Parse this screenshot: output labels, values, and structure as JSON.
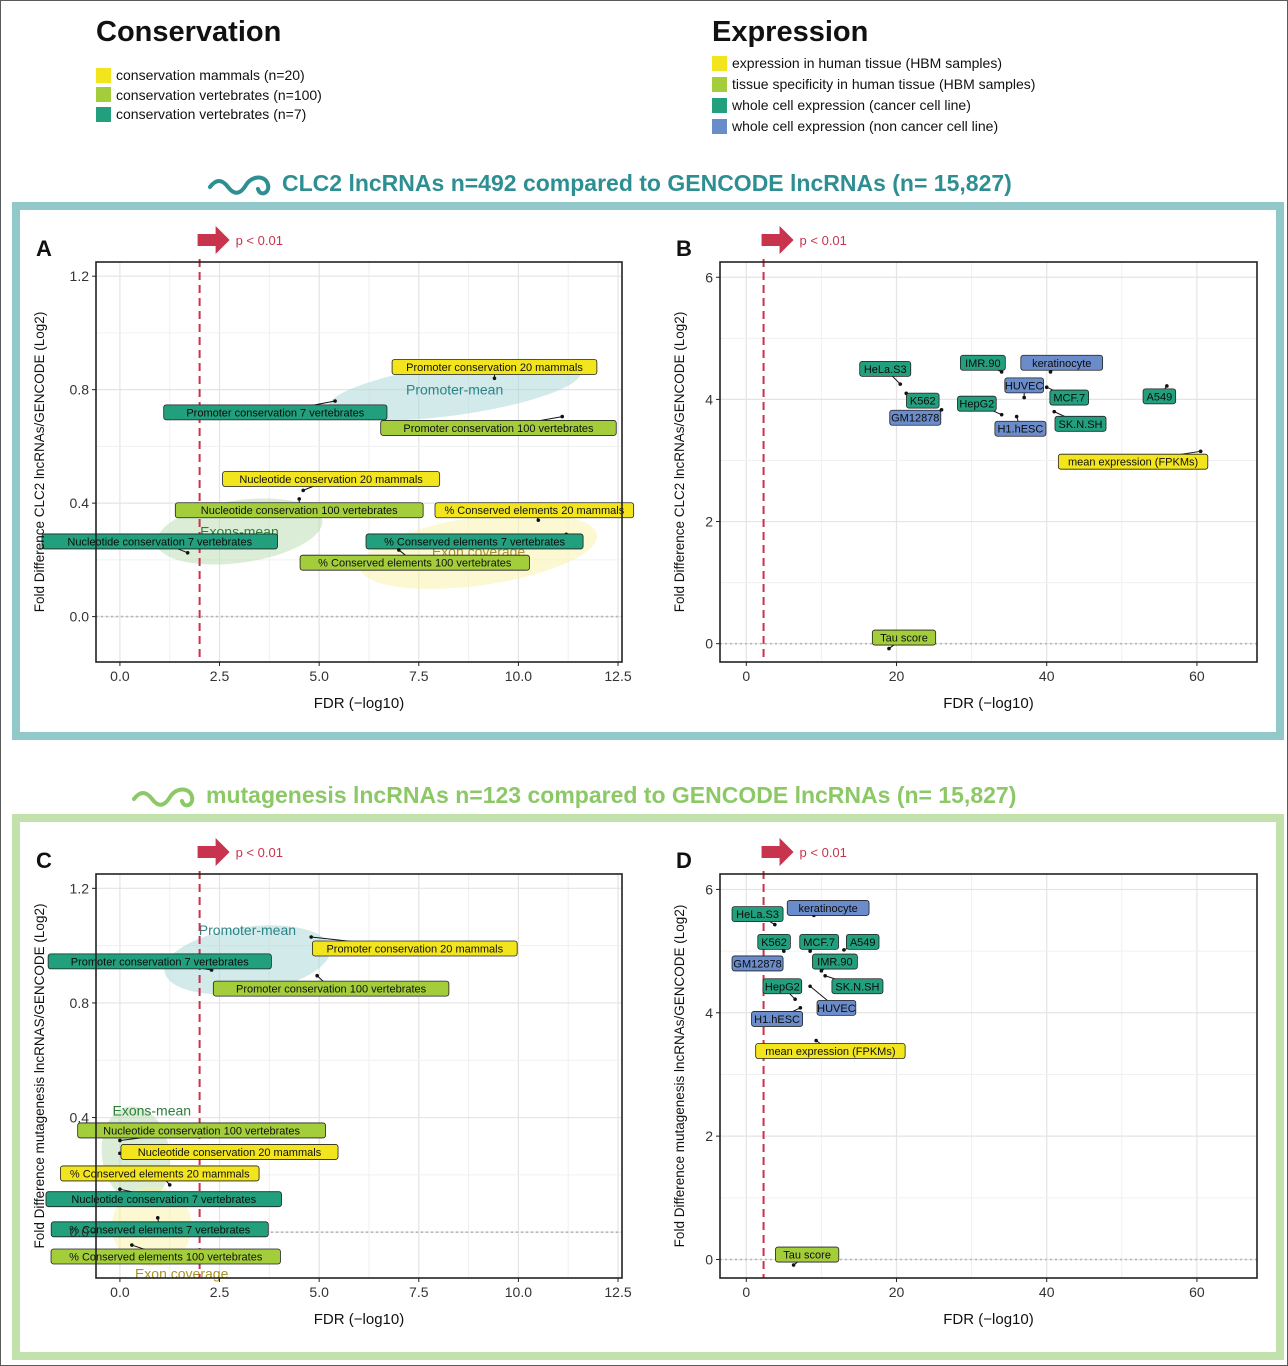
{
  "colors": {
    "yellow": "#f2e51d",
    "lightgreen": "#a3cd3b",
    "teal": "#22a07e",
    "blue": "#6b8ccb",
    "fdr_line": "#c8334e",
    "clc2": "#2e8f93",
    "mutagenesis": "#8cc966"
  },
  "legends": {
    "conservation": {
      "title": "Conservation",
      "items": [
        {
          "label": "conservation mammals (n=20)",
          "color": "#f2e51d"
        },
        {
          "label": "conservation vertebrates (n=100)",
          "color": "#a3cd3b"
        },
        {
          "label": "conservation vertebrates (n=7)",
          "color": "#22a07e"
        }
      ]
    },
    "expression": {
      "title": "Expression",
      "items": [
        {
          "label": "expression in human tissue (HBM samples)",
          "color": "#f2e51d"
        },
        {
          "label": "tissue specificity in human tissue (HBM samples)",
          "color": "#a3cd3b"
        },
        {
          "label": "whole cell expression (cancer cell line)",
          "color": "#22a07e"
        },
        {
          "label": "whole cell expression (non cancer cell line)",
          "color": "#6b8ccb"
        }
      ]
    }
  },
  "sections": {
    "clc2": {
      "title": "CLC2 lncRNAs n=492 compared to GENCODE lncRNAs (n= 15,827)",
      "icon": "rna-squiggle-icon"
    },
    "mutagenesis": {
      "title": "mutagenesis lncRNAs n=123 compared to GENCODE lncRNAs (n= 15,827)",
      "icon": "rna-squiggle-icon"
    }
  },
  "chart_data": [
    {
      "panel": "A",
      "type": "scatter",
      "xlabel": "FDR (−log10)",
      "ylabel": "Fold Difference CLC2 lncRNAs/GENCODE (Log2)",
      "xlim": [
        -0.6,
        12.6
      ],
      "ylim": [
        -0.16,
        1.25
      ],
      "xticks": [
        0.0,
        2.5,
        5.0,
        7.5,
        10.0,
        12.5
      ],
      "xtick_labels": [
        "0.0",
        "2.5",
        "5.0",
        "7.5",
        "10.0",
        "12.5"
      ],
      "yticks": [
        0.0,
        0.4,
        0.8,
        1.2
      ],
      "ytick_labels": [
        "0.0",
        "0.4",
        "0.8",
        "1.2"
      ],
      "threshold": {
        "x": 2.0,
        "label": "p < 0.01"
      },
      "grid": true,
      "ellipses": [
        {
          "label": "Promoter-mean",
          "cx": 8.4,
          "cy": 0.8,
          "rx": 3.2,
          "ry": 0.09,
          "color": "#a8d5d8",
          "label_color": "#2a8486"
        },
        {
          "label": "Exons-mean",
          "cx": 3.0,
          "cy": 0.3,
          "rx": 2.1,
          "ry": 0.11,
          "color": "#b7dcb0",
          "label_color": "#2e7d3a"
        },
        {
          "label": "Exon coverage",
          "cx": 9.0,
          "cy": 0.23,
          "rx": 3.0,
          "ry": 0.12,
          "color": "#faf2a6",
          "label_color": "#a89327"
        }
      ],
      "points": [
        {
          "x": 9.4,
          "y": 0.84,
          "label": "Promoter conservation 20 mammals",
          "color": "#f2e51d",
          "lx": 9.4,
          "ly": 0.88
        },
        {
          "x": 5.4,
          "y": 0.76,
          "label": "Promoter conservation 7 vertebrates",
          "color": "#22a07e",
          "lx": 3.9,
          "ly": 0.72
        },
        {
          "x": 11.1,
          "y": 0.705,
          "label": "Promoter conservation 100 vertebrates",
          "color": "#a3cd3b",
          "lx": 9.5,
          "ly": 0.665
        },
        {
          "x": 4.6,
          "y": 0.445,
          "label": "Nucleotide conservation 20 mammals",
          "color": "#f2e51d",
          "lx": 5.3,
          "ly": 0.485
        },
        {
          "x": 4.5,
          "y": 0.415,
          "label": "Nucleotide conservation 100 vertebrates",
          "color": "#a3cd3b",
          "lx": 4.5,
          "ly": 0.375
        },
        {
          "x": 10.5,
          "y": 0.34,
          "label": "% Conserved elements 20 mammals",
          "color": "#f2e51d",
          "lx": 10.4,
          "ly": 0.375
        },
        {
          "x": 1.7,
          "y": 0.225,
          "label": "Nucleotide conservation 7 vertebrates",
          "color": "#22a07e",
          "lx": 1.0,
          "ly": 0.265
        },
        {
          "x": 11.2,
          "y": 0.29,
          "label": "% Conserved elements 7 vertebrates",
          "color": "#22a07e",
          "lx": 8.9,
          "ly": 0.265
        },
        {
          "x": 7.0,
          "y": 0.235,
          "label": "% Conserved elements 100 vertebrates",
          "color": "#a3cd3b",
          "lx": 7.4,
          "ly": 0.19
        }
      ]
    },
    {
      "panel": "B",
      "type": "scatter",
      "xlabel": "FDR (−log10)",
      "ylabel": "Fold Difference CLC2 lncRNAs/GENCODE (Log2)",
      "xlim": [
        -3.5,
        68
      ],
      "ylim": [
        -0.3,
        6.25
      ],
      "xticks": [
        0,
        20,
        40,
        60
      ],
      "xtick_labels": [
        "0",
        "20",
        "40",
        "60"
      ],
      "yticks": [
        0,
        2,
        4,
        6
      ],
      "ytick_labels": [
        "0",
        "2",
        "4",
        "6"
      ],
      "threshold": {
        "x": 2.3,
        "label": "p < 0.01"
      },
      "grid": true,
      "ellipses": [],
      "points": [
        {
          "x": 20.5,
          "y": 4.25,
          "label": "HeLa.S3",
          "color": "#22a07e",
          "lx": 18.5,
          "ly": 4.5
        },
        {
          "x": 21.3,
          "y": 4.1,
          "label": "K562",
          "color": "#22a07e",
          "lx": 23.5,
          "ly": 3.98
        },
        {
          "x": 26.0,
          "y": 3.83,
          "label": "GM12878",
          "color": "#6b8ccb",
          "lx": 22.5,
          "ly": 3.7
        },
        {
          "x": 34.0,
          "y": 4.45,
          "label": "IMR.90",
          "color": "#22a07e",
          "lx": 31.5,
          "ly": 4.6
        },
        {
          "x": 34.0,
          "y": 3.75,
          "label": "HepG2",
          "color": "#22a07e",
          "lx": 30.7,
          "ly": 3.93
        },
        {
          "x": 40.5,
          "y": 4.45,
          "label": "keratinocyte",
          "color": "#6b8ccb",
          "lx": 42.0,
          "ly": 4.6
        },
        {
          "x": 37.0,
          "y": 4.03,
          "label": "HUVEC",
          "color": "#6b8ccb",
          "lx": 37.0,
          "ly": 4.23
        },
        {
          "x": 40.0,
          "y": 4.2,
          "label": "MCF.7",
          "color": "#22a07e",
          "lx": 43.0,
          "ly": 4.03
        },
        {
          "x": 56.0,
          "y": 4.22,
          "label": "A549",
          "color": "#22a07e",
          "lx": 55.0,
          "ly": 4.05
        },
        {
          "x": 36.0,
          "y": 3.72,
          "label": "H1.hESC",
          "color": "#6b8ccb",
          "lx": 36.5,
          "ly": 3.52
        },
        {
          "x": 41.0,
          "y": 3.8,
          "label": "SK.N.SH",
          "color": "#22a07e",
          "lx": 44.5,
          "ly": 3.6
        },
        {
          "x": 60.5,
          "y": 3.15,
          "label": "mean expression (FPKMs)",
          "color": "#f2e51d",
          "lx": 51.5,
          "ly": 2.98
        },
        {
          "x": 19.0,
          "y": -0.08,
          "label": "Tau score",
          "color": "#a3cd3b",
          "lx": 21.0,
          "ly": 0.1
        }
      ]
    },
    {
      "panel": "C",
      "type": "scatter",
      "xlabel": "FDR (−log10)",
      "ylabel": "Fold Difference mutagenesis lncRNAS/GENCODE (Log2)",
      "xlim": [
        -0.6,
        12.6
      ],
      "ylim": [
        -0.16,
        1.25
      ],
      "xticks": [
        0.0,
        2.5,
        5.0,
        7.5,
        10.0,
        12.5
      ],
      "xtick_labels": [
        "0.0",
        "2.5",
        "5.0",
        "7.5",
        "10.0",
        "12.5"
      ],
      "yticks": [
        0.0,
        0.4,
        0.8,
        1.2
      ],
      "ytick_labels": [
        "0.0",
        "0.4",
        "0.8",
        "1.2"
      ],
      "threshold": {
        "x": 2.0,
        "label": "p < 0.01"
      },
      "grid": true,
      "ellipses": [
        {
          "label": "Promoter-mean",
          "cx": 3.2,
          "cy": 0.95,
          "rx": 2.1,
          "ry": 0.115,
          "color": "#a8d5d8",
          "label_color": "#2a8486",
          "lx": 3.2,
          "ly": 1.055
        },
        {
          "label": "Exons-mean",
          "cx": 0.4,
          "cy": 0.27,
          "rx": 0.85,
          "ry": 0.17,
          "color": "#b7dcb0",
          "label_color": "#2e7d3a",
          "lx": 0.8,
          "ly": 0.425
        },
        {
          "label": "Exon coverage",
          "cx": 0.8,
          "cy": 0.02,
          "rx": 1.0,
          "ry": 0.14,
          "color": "#faf2a6",
          "label_color": "#a89327",
          "lx": 1.55,
          "ly": -0.145
        }
      ],
      "points": [
        {
          "x": 4.8,
          "y": 1.03,
          "label": "Promoter conservation 20 mammals",
          "color": "#f2e51d",
          "lx": 7.4,
          "ly": 0.99
        },
        {
          "x": 2.3,
          "y": 0.915,
          "label": "Promoter conservation 7 vertebrates",
          "color": "#22a07e",
          "lx": 1.0,
          "ly": 0.945
        },
        {
          "x": 4.95,
          "y": 0.895,
          "label": "Promoter conservation 100 vertebrates",
          "color": "#a3cd3b",
          "lx": 5.3,
          "ly": 0.85
        },
        {
          "x": 0.0,
          "y": 0.32,
          "label": "Nucleotide conservation 100 vertebrates",
          "color": "#a3cd3b",
          "lx": 2.05,
          "ly": 0.355
        },
        {
          "x": 0.0,
          "y": 0.275,
          "label": "Nucleotide conservation 20 mammals",
          "color": "#f2e51d",
          "lx": 2.75,
          "ly": 0.28
        },
        {
          "x": 1.25,
          "y": 0.165,
          "label": "% Conserved elements 20 mammals",
          "color": "#f2e51d",
          "lx": 1.0,
          "ly": 0.205
        },
        {
          "x": 0.0,
          "y": 0.15,
          "label": "Nucleotide conservation 7 vertebrates",
          "color": "#22a07e",
          "lx": 1.1,
          "ly": 0.115
        },
        {
          "x": 0.95,
          "y": 0.05,
          "label": "% Conserved elements 7 vertebrates",
          "color": "#22a07e",
          "lx": 1.0,
          "ly": 0.01
        },
        {
          "x": 0.3,
          "y": -0.045,
          "label": "% Conserved elements 100 vertebrates",
          "color": "#a3cd3b",
          "lx": 1.15,
          "ly": -0.085
        }
      ]
    },
    {
      "panel": "D",
      "type": "scatter",
      "xlabel": "FDR (−log10)",
      "ylabel": "Fold Difference mutagenesis lncRNAs/GENCODE (Log2)",
      "xlim": [
        -3.5,
        68
      ],
      "ylim": [
        -0.3,
        6.25
      ],
      "xticks": [
        0,
        20,
        40,
        60
      ],
      "xtick_labels": [
        "0",
        "20",
        "40",
        "60"
      ],
      "yticks": [
        0,
        2,
        4,
        6
      ],
      "ytick_labels": [
        "0",
        "2",
        "4",
        "6"
      ],
      "threshold": {
        "x": 2.3,
        "label": "p < 0.01"
      },
      "grid": true,
      "ellipses": [],
      "points": [
        {
          "x": 3.8,
          "y": 5.43,
          "label": "HeLa.S3",
          "color": "#22a07e",
          "lx": 1.5,
          "ly": 5.6
        },
        {
          "x": 9.0,
          "y": 5.58,
          "label": "keratinocyte",
          "color": "#6b8ccb",
          "lx": 10.9,
          "ly": 5.7
        },
        {
          "x": 5.0,
          "y": 5.0,
          "label": "K562",
          "color": "#22a07e",
          "lx": 3.7,
          "ly": 5.15
        },
        {
          "x": 8.5,
          "y": 5.0,
          "label": "MCF.7",
          "color": "#22a07e",
          "lx": 9.7,
          "ly": 5.15
        },
        {
          "x": 13.0,
          "y": 5.02,
          "label": "A549",
          "color": "#22a07e",
          "lx": 15.5,
          "ly": 5.15
        },
        {
          "x": 3.5,
          "y": 4.78,
          "label": "GM12878",
          "color": "#6b8ccb",
          "lx": 1.5,
          "ly": 4.8
        },
        {
          "x": 10.0,
          "y": 4.68,
          "label": "IMR.90",
          "color": "#22a07e",
          "lx": 11.8,
          "ly": 4.83
        },
        {
          "x": 10.5,
          "y": 4.6,
          "label": "SK.N.SH",
          "color": "#22a07e",
          "lx": 14.8,
          "ly": 4.43
        },
        {
          "x": 6.5,
          "y": 4.22,
          "label": "HepG2",
          "color": "#22a07e",
          "lx": 4.8,
          "ly": 4.43
        },
        {
          "x": 8.5,
          "y": 4.43,
          "label": "HUVEC",
          "color": "#6b8ccb",
          "lx": 12.0,
          "ly": 4.08
        },
        {
          "x": 7.2,
          "y": 4.08,
          "label": "H1.hESC",
          "color": "#6b8ccb",
          "lx": 4.1,
          "ly": 3.9
        },
        {
          "x": 9.3,
          "y": 3.55,
          "label": "mean expression (FPKMs)",
          "color": "#f2e51d",
          "lx": 11.2,
          "ly": 3.38
        },
        {
          "x": 6.3,
          "y": -0.09,
          "label": "Tau score",
          "color": "#a3cd3b",
          "lx": 8.1,
          "ly": 0.08
        }
      ]
    }
  ]
}
